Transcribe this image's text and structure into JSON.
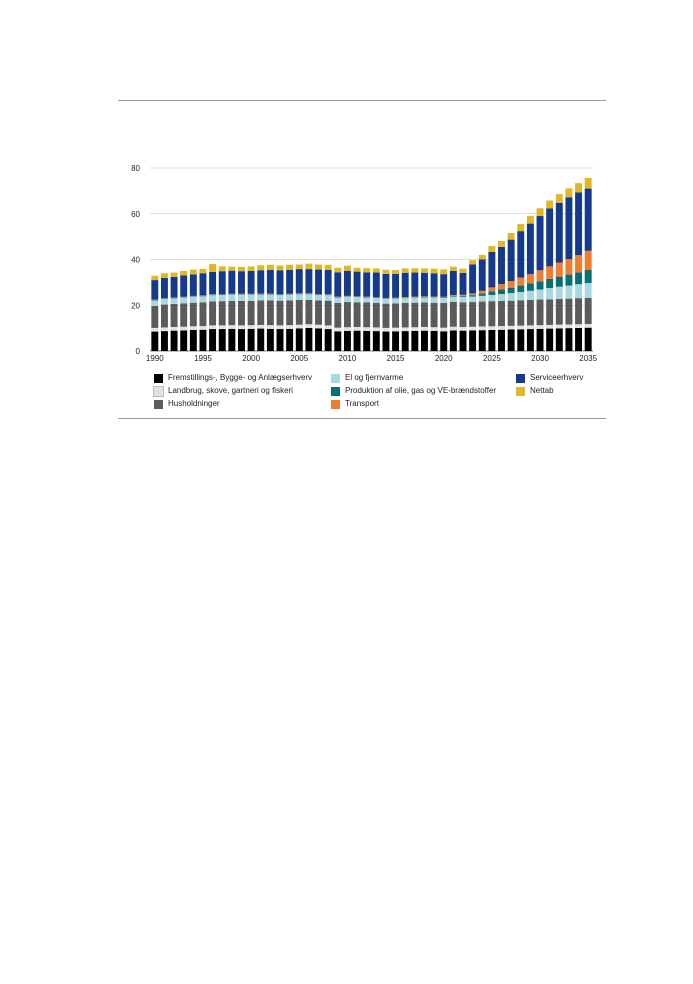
{
  "chart_data": {
    "type": "bar",
    "stacked": true,
    "title": "",
    "xlabel": "",
    "ylabel": "",
    "ylim": [
      0,
      80
    ],
    "yticks": [
      0,
      20,
      40,
      60,
      80
    ],
    "xtick_labels": [
      "1990",
      "1995",
      "2000",
      "2005",
      "2010",
      "2015",
      "2020",
      "2025",
      "2030",
      "2035"
    ],
    "grid": "horizontal",
    "legend_position": "bottom",
    "categories": [
      1990,
      1991,
      1992,
      1993,
      1994,
      1995,
      1996,
      1997,
      1998,
      1999,
      2000,
      2001,
      2002,
      2003,
      2004,
      2005,
      2006,
      2007,
      2008,
      2009,
      2010,
      2011,
      2012,
      2013,
      2014,
      2015,
      2016,
      2017,
      2018,
      2019,
      2020,
      2021,
      2022,
      2023,
      2024,
      2025,
      2026,
      2027,
      2028,
      2029,
      2030,
      2031,
      2032,
      2033,
      2034,
      2035
    ],
    "series": [
      {
        "name": "Fremstillings-, Bygge- og Anlægserhverv",
        "color": "#000000",
        "values": [
          8.5,
          8.7,
          8.9,
          9.0,
          9.2,
          9.3,
          9.6,
          9.6,
          9.7,
          9.6,
          9.7,
          9.8,
          9.7,
          9.6,
          9.7,
          9.9,
          10.1,
          9.9,
          9.6,
          8.6,
          8.8,
          8.9,
          8.8,
          8.7,
          8.5,
          8.6,
          8.7,
          8.8,
          8.9,
          8.8,
          8.6,
          9.0,
          8.9,
          9.0,
          9.1,
          9.2,
          9.3,
          9.4,
          9.5,
          9.6,
          9.7,
          9.8,
          9.9,
          10.0,
          10.1,
          10.2
        ]
      },
      {
        "name": "Landbrug, skove, gartneri og fiskeri",
        "color": "#e2e2e2",
        "values": [
          1.6,
          1.6,
          1.6,
          1.6,
          1.6,
          1.6,
          1.6,
          1.6,
          1.6,
          1.6,
          1.6,
          1.6,
          1.6,
          1.6,
          1.6,
          1.6,
          1.6,
          1.6,
          1.6,
          1.6,
          1.6,
          1.6,
          1.6,
          1.6,
          1.6,
          1.6,
          1.6,
          1.6,
          1.6,
          1.6,
          1.6,
          1.6,
          1.6,
          1.6,
          1.6,
          1.6,
          1.6,
          1.6,
          1.6,
          1.6,
          1.6,
          1.6,
          1.6,
          1.6,
          1.6,
          1.6
        ]
      },
      {
        "name": "Husholdninger",
        "color": "#5b5b5b",
        "values": [
          9.6,
          10.0,
          10.1,
          10.2,
          10.3,
          10.4,
          10.5,
          10.6,
          10.6,
          10.7,
          10.6,
          10.7,
          10.8,
          10.8,
          10.8,
          10.8,
          10.7,
          10.6,
          10.8,
          10.8,
          11.0,
          10.8,
          10.8,
          10.7,
          10.6,
          10.6,
          10.7,
          10.7,
          10.7,
          10.7,
          10.8,
          10.9,
          10.8,
          10.8,
          10.9,
          11.0,
          11.0,
          11.0,
          11.1,
          11.1,
          11.2,
          11.2,
          11.3,
          11.3,
          11.4,
          11.4
        ]
      },
      {
        "name": "El og fjernvarme",
        "color": "#a8d8e2",
        "values": [
          2.4,
          2.4,
          2.4,
          2.5,
          2.6,
          2.6,
          2.7,
          2.7,
          2.7,
          2.7,
          2.7,
          2.6,
          2.6,
          2.5,
          2.5,
          2.5,
          2.4,
          2.4,
          2.4,
          2.4,
          2.3,
          2.3,
          2.2,
          2.2,
          2.1,
          2.1,
          2.1,
          2.2,
          2.2,
          2.2,
          2.2,
          2.3,
          2.4,
          2.4,
          2.5,
          2.7,
          3.0,
          3.3,
          3.6,
          4.0,
          4.4,
          4.9,
          5.3,
          5.7,
          6.1,
          6.5
        ]
      },
      {
        "name": "Produktion af olie, gas og VE-brændstoffer",
        "color": "#0b6e74",
        "values": [
          0.2,
          0.2,
          0.2,
          0.2,
          0.2,
          0.2,
          0.2,
          0.2,
          0.2,
          0.2,
          0.2,
          0.2,
          0.2,
          0.2,
          0.2,
          0.2,
          0.2,
          0.2,
          0.2,
          0.2,
          0.2,
          0.2,
          0.2,
          0.2,
          0.2,
          0.2,
          0.2,
          0.2,
          0.2,
          0.2,
          0.2,
          0.3,
          0.4,
          0.6,
          1.0,
          1.6,
          2.0,
          2.4,
          2.8,
          3.2,
          3.6,
          4.0,
          4.4,
          4.8,
          5.2,
          5.7
        ]
      },
      {
        "name": "Transport",
        "color": "#ee7d31",
        "values": [
          0.2,
          0.2,
          0.2,
          0.2,
          0.2,
          0.2,
          0.2,
          0.2,
          0.2,
          0.2,
          0.2,
          0.2,
          0.2,
          0.2,
          0.2,
          0.2,
          0.2,
          0.2,
          0.2,
          0.2,
          0.2,
          0.2,
          0.2,
          0.2,
          0.2,
          0.2,
          0.3,
          0.3,
          0.3,
          0.3,
          0.3,
          0.4,
          0.5,
          0.8,
          1.2,
          1.7,
          2.3,
          2.9,
          3.5,
          4.1,
          4.8,
          5.5,
          6.2,
          6.8,
          7.5,
          8.4
        ]
      },
      {
        "name": "Serviceerhverv",
        "color": "#153a8c",
        "values": [
          8.5,
          8.9,
          9.0,
          9.3,
          9.4,
          9.7,
          9.8,
          10.0,
          10.1,
          9.9,
          10.0,
          10.2,
          10.3,
          10.4,
          10.5,
          10.6,
          10.6,
          10.7,
          10.6,
          10.6,
          10.9,
          10.7,
          10.6,
          10.7,
          10.5,
          10.4,
          10.6,
          10.5,
          10.3,
          10.2,
          9.9,
          10.5,
          9.5,
          12.7,
          13.7,
          15.5,
          16.3,
          18.1,
          20.3,
          22.1,
          23.7,
          25.3,
          26.1,
          27.0,
          27.4,
          27.2
        ]
      },
      {
        "name": "Nettab",
        "color": "#e2b725",
        "values": [
          1.9,
          2.0,
          1.9,
          2.0,
          2.1,
          1.9,
          3.4,
          2.1,
          1.8,
          1.9,
          2.0,
          2.2,
          2.3,
          2.1,
          2.2,
          2.0,
          2.4,
          2.2,
          2.3,
          2.0,
          2.3,
          1.7,
          1.8,
          1.8,
          1.8,
          1.7,
          1.9,
          1.9,
          1.9,
          2.0,
          2.1,
          1.9,
          1.9,
          1.8,
          2.0,
          2.6,
          2.6,
          2.9,
          3.1,
          3.4,
          3.4,
          3.5,
          3.8,
          3.9,
          4.1,
          4.7
        ]
      }
    ]
  }
}
